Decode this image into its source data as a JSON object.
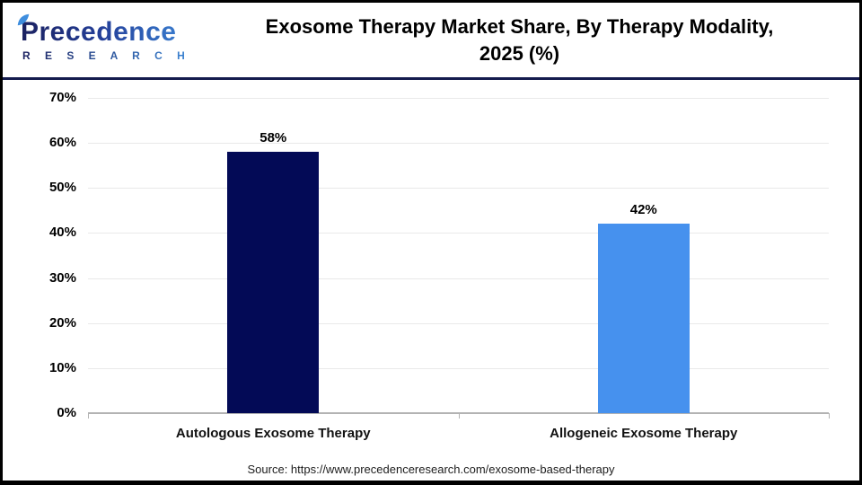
{
  "header": {
    "logo_name": "Precedence",
    "logo_subtitle": "R E S E A R C H",
    "title_line1": "Exosome Therapy Market Share, By Therapy Modality,",
    "title_line2": "2025 (%)"
  },
  "chart_data": {
    "type": "bar",
    "title": "Exosome Therapy Market Share, By Therapy Modality, 2025 (%)",
    "categories": [
      "Autologous Exosome Therapy",
      "Allogeneic Exosome Therapy"
    ],
    "values": [
      58,
      42
    ],
    "value_labels": [
      "58%",
      "42%"
    ],
    "bar_colors": [
      "#030a56",
      "#4691ee"
    ],
    "xlabel": "",
    "ylabel": "",
    "ylim": [
      0,
      70
    ],
    "ytick_step": 10,
    "ytick_labels": [
      "70%",
      "60%",
      "50%",
      "40%",
      "30%",
      "20%",
      "10%",
      "0%"
    ],
    "grid": true,
    "legend": false,
    "gridline_color": "#e9e9e9",
    "axis_color": "#b3b3b3"
  },
  "footer": {
    "source": "Source: https://www.precedenceresearch.com/exosome-based-therapy"
  }
}
